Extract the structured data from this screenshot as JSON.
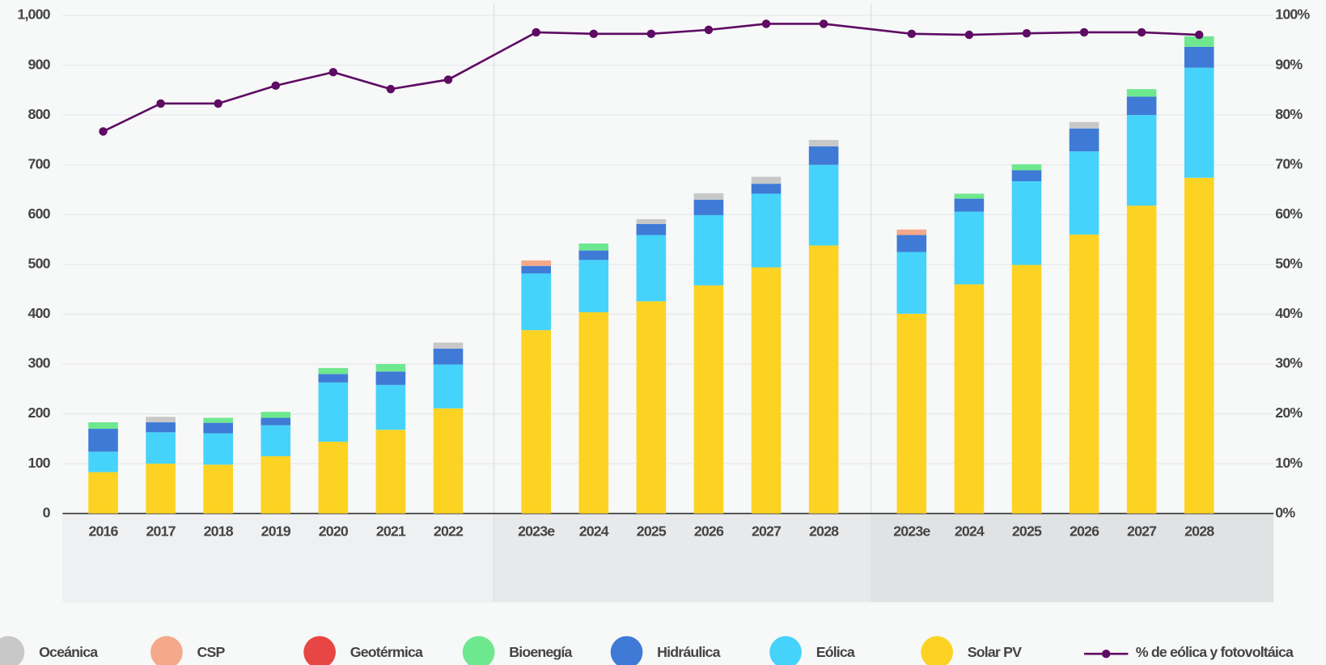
{
  "chart_data": {
    "type": "stacked-bar-line",
    "categories": [
      "2016",
      "2017",
      "2018",
      "2019",
      "2020",
      "2021",
      "2022",
      "2023e",
      "2024",
      "2025",
      "2026",
      "2027",
      "2028",
      "2023e",
      "2024",
      "2025",
      "2026",
      "2027",
      "2028"
    ],
    "series": [
      {
        "name": "Solar PV",
        "color": "#fdd323",
        "values": [
          83,
          100,
          98,
          115,
          144,
          168,
          211,
          368,
          404,
          426,
          458,
          494,
          538,
          401,
          460,
          499,
          560,
          618,
          674
        ]
      },
      {
        "name": "Eólica",
        "color": "#45d3fb",
        "values": [
          41,
          63,
          63,
          62,
          119,
          90,
          88,
          114,
          105,
          133,
          141,
          148,
          162,
          124,
          146,
          168,
          167,
          182,
          221
        ]
      },
      {
        "name": "Hidráulica",
        "color": "#3f7ad6",
        "values": [
          46,
          20,
          21,
          15,
          17,
          27,
          32,
          15,
          19,
          22,
          31,
          20,
          37,
          34,
          26,
          22,
          46,
          37,
          42
        ]
      },
      {
        "name": "Bioenegía",
        "color": "#6ee88f",
        "values": [
          13,
          0,
          10,
          12,
          12,
          15,
          0,
          0,
          14,
          0,
          0,
          0,
          0,
          0,
          10,
          12,
          0,
          15,
          21
        ]
      },
      {
        "name": "Geotérmica",
        "color": "#e84545",
        "values": [
          0,
          0,
          0,
          0,
          0,
          0,
          0,
          0,
          0,
          0,
          0,
          0,
          0,
          0,
          0,
          0,
          0,
          0,
          0
        ]
      },
      {
        "name": "CSP",
        "color": "#f4a98a",
        "values": [
          0,
          0,
          0,
          0,
          0,
          0,
          0,
          11,
          0,
          0,
          0,
          0,
          0,
          11,
          0,
          0,
          0,
          0,
          0
        ]
      },
      {
        "name": "Oceánica",
        "color": "#c8c8c8",
        "values": [
          0,
          11,
          0,
          0,
          0,
          0,
          12,
          0,
          0,
          10,
          13,
          14,
          13,
          0,
          0,
          0,
          13,
          0,
          0
        ]
      },
      {
        "name": "% de eólica y fotovoltáica",
        "color": "#5e0b63",
        "axis": "y2",
        "values": [
          76.7,
          82.3,
          82.3,
          85.9,
          88.6,
          85.2,
          87.1,
          96.6,
          96.3,
          96.3,
          97.1,
          98.3,
          98.3,
          96.3,
          96.1,
          96.4,
          96.6,
          96.6,
          96.1
        ]
      }
    ],
    "ylim": [
      0,
      1000
    ],
    "yticks": [
      0,
      100,
      200,
      300,
      400,
      500,
      600,
      700,
      800,
      900,
      {
        "value": 1000,
        "label": "1,000"
      }
    ],
    "y2lim": [
      0,
      100
    ],
    "y2ticks": [
      {
        "value": 0,
        "label": "0%"
      },
      {
        "value": 10,
        "label": "10%"
      },
      {
        "value": 20,
        "label": "20%"
      },
      {
        "value": 30,
        "label": "30%"
      },
      {
        "value": 40,
        "label": "40%"
      },
      {
        "value": 50,
        "label": "50%"
      },
      {
        "value": 60,
        "label": "60%"
      },
      {
        "value": 70,
        "label": "70%"
      },
      {
        "value": 80,
        "label": "80%"
      },
      {
        "value": 90,
        "label": "90%"
      },
      {
        "value": 100,
        "label": "100%"
      }
    ],
    "grid": true
  }
}
